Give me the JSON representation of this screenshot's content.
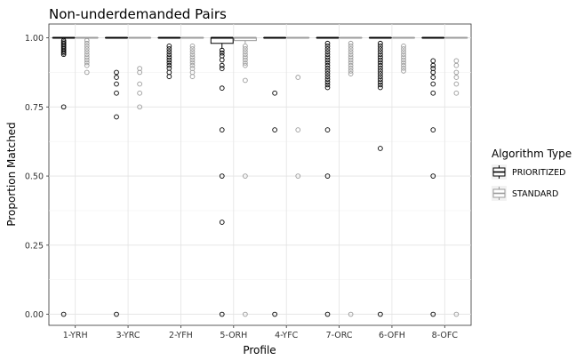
{
  "chart_data": {
    "type": "boxplot",
    "title": "Non-underdemanded Pairs",
    "xlabel": "Profile",
    "ylabel": "Proportion Matched",
    "categories": [
      "1-YRH",
      "3-YRC",
      "2-YFH",
      "5-ORH",
      "4-YFC",
      "7-ORC",
      "6-OFH",
      "8-OFC"
    ],
    "ylim": [
      -0.04,
      1.05
    ],
    "yticks": [
      0.0,
      0.25,
      0.5,
      0.75,
      1.0
    ],
    "ytick_labels": [
      "0.00",
      "0.25",
      "0.50",
      "0.75",
      "1.00"
    ],
    "grid": true,
    "legend": {
      "title": "Algorithm Type",
      "position": "right",
      "entries": [
        "PRIORITIZED",
        "STANDARD"
      ]
    },
    "colors": {
      "PRIORITIZED": "#000000",
      "STANDARD": "#9a9a9a"
    },
    "series": [
      {
        "name": "PRIORITIZED",
        "boxes": [
          {
            "q1": 1.0,
            "median": 1.0,
            "q3": 1.0,
            "whisker_low": 1.0,
            "whisker_high": 1.0,
            "outliers": [
              0.99,
              0.985,
              0.98,
              0.975,
              0.97,
              0.965,
              0.96,
              0.955,
              0.95,
              0.945,
              0.94,
              0.75,
              0.0
            ]
          },
          {
            "q1": 1.0,
            "median": 1.0,
            "q3": 1.0,
            "whisker_low": 1.0,
            "whisker_high": 1.0,
            "outliers": [
              0.875,
              0.857,
              0.833,
              0.8,
              0.714,
              0.0
            ]
          },
          {
            "q1": 1.0,
            "median": 1.0,
            "q3": 1.0,
            "whisker_low": 1.0,
            "whisker_high": 1.0,
            "outliers": [
              0.97,
              0.96,
              0.95,
              0.94,
              0.93,
              0.92,
              0.91,
              0.9,
              0.89,
              0.875,
              0.86
            ]
          },
          {
            "q1": 0.98,
            "median": 1.0,
            "q3": 1.0,
            "whisker_low": 0.96,
            "whisker_high": 1.0,
            "outliers": [
              0.955,
              0.945,
              0.935,
              0.92,
              0.9,
              0.889,
              0.818,
              0.667,
              0.5,
              0.333,
              0.0
            ]
          },
          {
            "q1": 1.0,
            "median": 1.0,
            "q3": 1.0,
            "whisker_low": 1.0,
            "whisker_high": 1.0,
            "outliers": [
              0.8,
              0.667,
              0.0
            ]
          },
          {
            "q1": 1.0,
            "median": 1.0,
            "q3": 1.0,
            "whisker_low": 1.0,
            "whisker_high": 1.0,
            "outliers": [
              0.98,
              0.97,
              0.96,
              0.95,
              0.94,
              0.93,
              0.92,
              0.91,
              0.9,
              0.89,
              0.88,
              0.87,
              0.86,
              0.85,
              0.84,
              0.83,
              0.82,
              0.667,
              0.5,
              0.0
            ]
          },
          {
            "q1": 1.0,
            "median": 1.0,
            "q3": 1.0,
            "whisker_low": 1.0,
            "whisker_high": 1.0,
            "outliers": [
              0.98,
              0.97,
              0.96,
              0.95,
              0.94,
              0.93,
              0.92,
              0.91,
              0.9,
              0.89,
              0.88,
              0.87,
              0.86,
              0.85,
              0.84,
              0.83,
              0.82,
              0.6,
              0.0
            ]
          },
          {
            "q1": 1.0,
            "median": 1.0,
            "q3": 1.0,
            "whisker_low": 1.0,
            "whisker_high": 1.0,
            "outliers": [
              0.917,
              0.9,
              0.889,
              0.875,
              0.857,
              0.833,
              0.8,
              0.667,
              0.5,
              0.0
            ]
          }
        ]
      },
      {
        "name": "STANDARD",
        "boxes": [
          {
            "q1": 1.0,
            "median": 1.0,
            "q3": 1.0,
            "whisker_low": 1.0,
            "whisker_high": 1.0,
            "outliers": [
              0.99,
              0.98,
              0.97,
              0.96,
              0.95,
              0.94,
              0.93,
              0.92,
              0.91,
              0.9,
              0.875
            ]
          },
          {
            "q1": 1.0,
            "median": 1.0,
            "q3": 1.0,
            "whisker_low": 1.0,
            "whisker_high": 1.0,
            "outliers": [
              0.889,
              0.875,
              0.833,
              0.8,
              0.75
            ]
          },
          {
            "q1": 1.0,
            "median": 1.0,
            "q3": 1.0,
            "whisker_low": 1.0,
            "whisker_high": 1.0,
            "outliers": [
              0.97,
              0.96,
              0.95,
              0.94,
              0.93,
              0.92,
              0.91,
              0.9,
              0.889,
              0.875,
              0.86
            ]
          },
          {
            "q1": 0.99,
            "median": 1.0,
            "q3": 1.0,
            "whisker_low": 0.98,
            "whisker_high": 1.0,
            "outliers": [
              0.97,
              0.96,
              0.95,
              0.94,
              0.93,
              0.92,
              0.909,
              0.9,
              0.846,
              0.5,
              0.0
            ]
          },
          {
            "q1": 1.0,
            "median": 1.0,
            "q3": 1.0,
            "whisker_low": 1.0,
            "whisker_high": 1.0,
            "outliers": [
              0.857,
              0.667,
              0.5
            ]
          },
          {
            "q1": 1.0,
            "median": 1.0,
            "q3": 1.0,
            "whisker_low": 1.0,
            "whisker_high": 1.0,
            "outliers": [
              0.98,
              0.97,
              0.96,
              0.95,
              0.94,
              0.93,
              0.92,
              0.91,
              0.9,
              0.89,
              0.88,
              0.87,
              0.0
            ]
          },
          {
            "q1": 1.0,
            "median": 1.0,
            "q3": 1.0,
            "whisker_low": 1.0,
            "whisker_high": 1.0,
            "outliers": [
              0.97,
              0.96,
              0.95,
              0.94,
              0.93,
              0.92,
              0.91,
              0.9,
              0.89,
              0.88
            ]
          },
          {
            "q1": 1.0,
            "median": 1.0,
            "q3": 1.0,
            "whisker_low": 1.0,
            "whisker_high": 1.0,
            "outliers": [
              0.917,
              0.9,
              0.875,
              0.857,
              0.833,
              0.8,
              0.0
            ]
          }
        ]
      }
    ]
  }
}
